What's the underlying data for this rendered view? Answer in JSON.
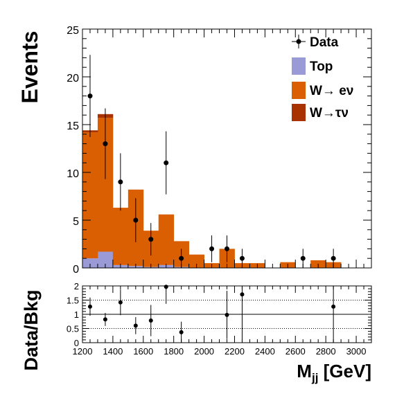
{
  "chart_data": [
    {
      "type": "bar",
      "stacked": true,
      "ylabel": "Events",
      "xlim": [
        1200,
        3100
      ],
      "ylim": [
        0,
        25
      ],
      "yticks": [
        0,
        5,
        10,
        15,
        20,
        25
      ],
      "bin_edges": [
        1200,
        1250,
        1300,
        1350,
        1400,
        1450,
        1500,
        1550,
        1600,
        1650,
        1700,
        1750,
        1800,
        1850,
        1900,
        1950,
        2000,
        2050,
        2100,
        2150,
        2200,
        2250,
        2300,
        2350,
        2400,
        2450,
        2500,
        2550,
        2600,
        2650,
        2700,
        2750,
        2800,
        2850,
        2900,
        2950,
        3000,
        3050,
        3100
      ],
      "series": [
        {
          "name": "Top",
          "color": "#9a9ad6",
          "values": [
            1.0,
            1.0,
            1.7,
            1.7,
            0.3,
            0.3,
            0.2,
            0.2,
            0.1,
            0.1,
            0.3,
            0.3,
            0.1,
            0.1,
            0,
            0,
            0,
            0,
            0,
            0,
            0,
            0,
            0,
            0,
            0,
            0,
            0,
            0,
            0,
            0,
            0,
            0,
            0,
            0,
            0,
            0,
            0,
            0
          ]
        },
        {
          "name": "W→ eν",
          "color": "#d95f02",
          "values": [
            13.2,
            13.2,
            14.0,
            14.0,
            6.0,
            6.0,
            8.0,
            8.0,
            3.8,
            3.8,
            5.3,
            5.3,
            2.7,
            2.7,
            1.4,
            1.4,
            0.5,
            0.5,
            2.0,
            2.0,
            0.5,
            0.5,
            0.5,
            0.5,
            0,
            0,
            0.6,
            0.6,
            0,
            0,
            0.8,
            0.8,
            0.6,
            0.6,
            0,
            0,
            0,
            0
          ]
        },
        {
          "name": "W→τν",
          "color": "#a83200",
          "values": [
            0.2,
            0.2,
            0.4,
            0.4,
            0,
            0,
            0,
            0,
            0,
            0,
            0,
            0,
            0,
            0,
            0,
            0,
            0,
            0,
            0,
            0,
            0,
            0,
            0,
            0,
            0,
            0,
            0,
            0,
            0,
            0,
            0,
            0,
            0,
            0,
            0,
            0,
            0,
            0
          ]
        }
      ],
      "data_points": {
        "name": "Data",
        "x": [
          1250,
          1350,
          1450,
          1550,
          1650,
          1750,
          1850,
          2050,
          2150,
          2250,
          2650,
          2850
        ],
        "y": [
          18,
          13,
          9,
          5,
          3,
          11,
          1,
          2,
          2,
          1,
          1,
          1
        ],
        "err_up": [
          4.3,
          3.7,
          3.0,
          2.3,
          1.7,
          3.3,
          1.0,
          1.4,
          1.4,
          1.0,
          1.0,
          1.0
        ],
        "err_down": [
          4.3,
          3.7,
          3.0,
          2.3,
          1.7,
          3.3,
          1.0,
          1.4,
          1.4,
          1.0,
          1.0,
          1.0
        ]
      }
    },
    {
      "type": "scatter",
      "ylabel": "Data/Bkg",
      "xlabel_main": "M",
      "xlabel_sub": "jj",
      "xlabel_unit": " [GeV]",
      "xlim": [
        1200,
        3100
      ],
      "ylim": [
        0,
        2
      ],
      "yticks": [
        "0",
        "0.5",
        "1",
        "1.5",
        "2"
      ],
      "xticks": [
        "1200",
        "1400",
        "1600",
        "1800",
        "2000",
        "2200",
        "2400",
        "2600",
        "2800",
        "3000"
      ],
      "reference_line": 1,
      "dotted_lines": [
        0.5,
        1.5
      ],
      "points": {
        "x": [
          1250,
          1350,
          1450,
          1550,
          1650,
          1750,
          1850,
          2150,
          2250,
          2850
        ],
        "y": [
          1.27,
          0.82,
          1.42,
          0.6,
          0.78,
          1.97,
          0.37,
          0.98,
          1.7,
          1.27
        ],
        "err_up": [
          0.32,
          0.23,
          0.45,
          0.3,
          0.55,
          0.6,
          0.37,
          0.85,
          1.0,
          1.3
        ],
        "err_down": [
          0.32,
          0.23,
          0.45,
          0.3,
          0.55,
          0.6,
          0.37,
          0.85,
          1.7,
          1.27
        ]
      }
    }
  ],
  "legend": {
    "position": "top-right",
    "data_label": "Data",
    "top_label": "Top",
    "wev_label": "W→ eν",
    "wtv_label": "W→τν",
    "top_color": "#9a9ad6",
    "wev_color": "#d95f02",
    "wtv_color": "#a83200"
  }
}
